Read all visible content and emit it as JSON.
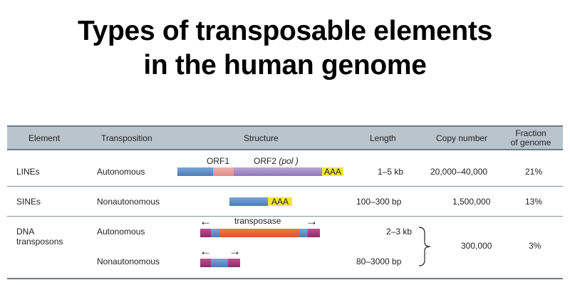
{
  "title": {
    "line1": "Types of transposable elements",
    "line2": "in the human genome"
  },
  "table": {
    "headers": {
      "element": "Element",
      "transposition": "Transposition",
      "structure": "Structure",
      "length": "Length",
      "copy_number": "Copy number",
      "fraction_line1": "Fraction",
      "fraction_line2": "of genome"
    },
    "rows": [
      {
        "element": "LINEs",
        "transposition": "Autonomous",
        "length": "1–5 kb",
        "copy_number": "20,000–40,000",
        "fraction": "21%",
        "structure_labels": {
          "orf1": "ORF1",
          "orf2": "ORF2",
          "orf2_pol": "(pol )",
          "polya": "AAA"
        }
      },
      {
        "element": "SINEs",
        "transposition": "Nonautonomous",
        "length": "100–300 bp",
        "copy_number": "1,500,000",
        "fraction": "13%",
        "structure_labels": {
          "polya": "AAA"
        }
      },
      {
        "element_line1": "DNA",
        "element_line2": "transposons",
        "transposition": "Autonomous",
        "length": "2–3 kb",
        "copy_number": "300,000",
        "fraction": "3%",
        "structure_labels": {
          "transposase": "transposase"
        }
      },
      {
        "transposition": "Nonautonomous",
        "length": "80–3000 bp"
      }
    ]
  },
  "colors": {
    "header_bg": "#b9c4cc",
    "separator": "#7f8e99",
    "segment_blue": "#5f8fc8",
    "segment_pink": "#e89f99",
    "segment_purple": "#a48dc9",
    "segment_yellow": "#f3e53a",
    "segment_magenta": "#a33a78",
    "segment_orange": "#e5643a"
  },
  "icons": [
    "left-arrow-icon",
    "right-arrow-icon",
    "curly-brace-icon"
  ]
}
